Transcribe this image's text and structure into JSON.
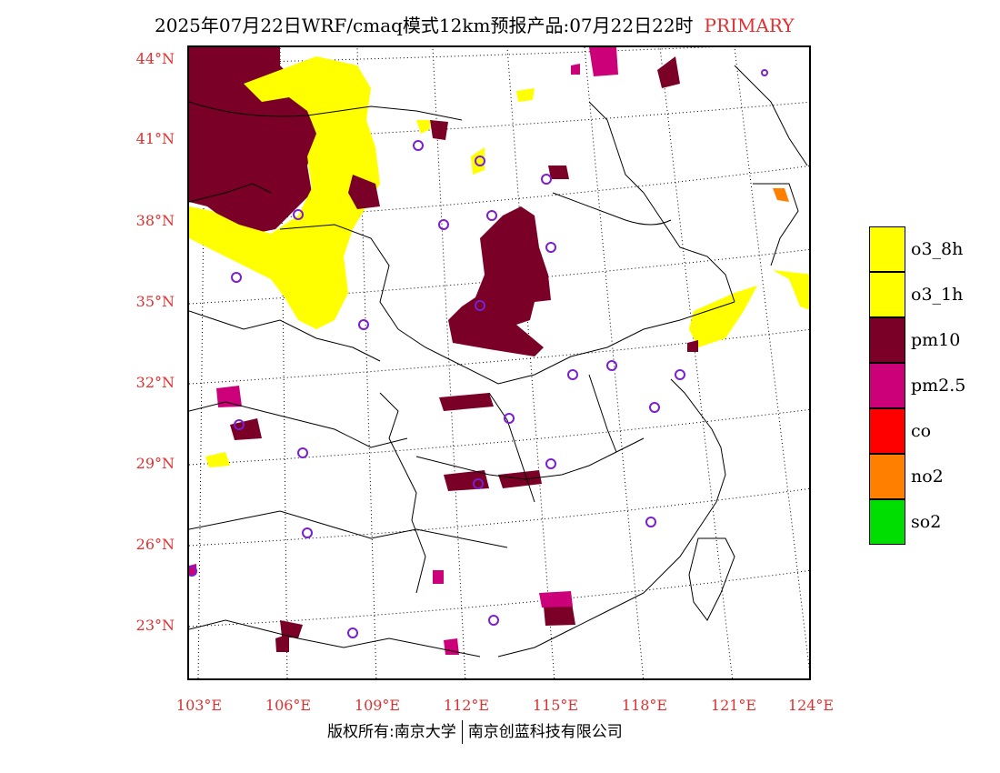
{
  "title": {
    "main": "2025年07月22日WRF/cmaq模式12km预报产品:07月22日22时",
    "tag": "PRIMARY"
  },
  "axes": {
    "lat_labels": [
      "44°N",
      "41°N",
      "38°N",
      "35°N",
      "32°N",
      "29°N",
      "26°N",
      "23°N"
    ],
    "lon_labels": [
      "103°E",
      "106°E",
      "109°E",
      "112°E",
      "115°E",
      "118°E",
      "121°E",
      "124°E"
    ]
  },
  "legend": [
    {
      "label": "o3_8h",
      "color": "#ffff00"
    },
    {
      "label": "o3_1h",
      "color": "#ffff00"
    },
    {
      "label": "pm10",
      "color": "#7a0028"
    },
    {
      "label": "pm2.5",
      "color": "#cc0078"
    },
    {
      "label": "co",
      "color": "#ff0000"
    },
    {
      "label": "no2",
      "color": "#ff7f00"
    },
    {
      "label": "so2",
      "color": "#00dd00"
    }
  ],
  "copyright": {
    "left": "版权所有:南京大学",
    "right": "南京创蓝科技有限公司"
  }
}
